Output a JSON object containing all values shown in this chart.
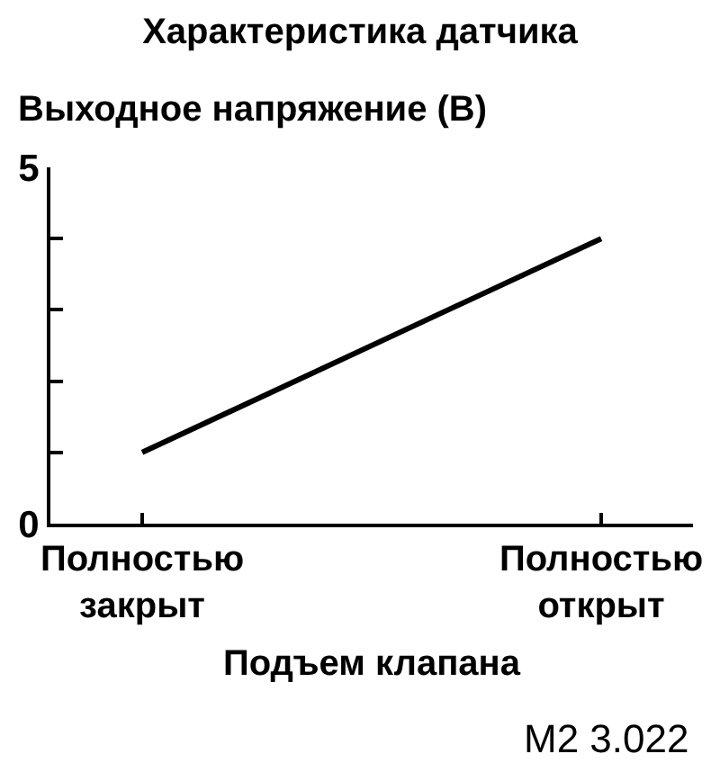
{
  "chart_data": {
    "type": "line",
    "title": "Характеристика датчика",
    "ylabel": "Выходное напряжение (В)",
    "xlabel": "Подъем клапана",
    "annotations": [
      "M2 3.022"
    ],
    "categories": [
      "Полностью закрыт",
      "Полностью открыт"
    ],
    "series": [
      {
        "color": "#000000",
        "values": [
          1,
          4
        ]
      }
    ],
    "ylim": [
      0,
      5
    ],
    "yticks": [
      0,
      {
        "value": 1,
        "label": null
      },
      {
        "value": 2,
        "label": null
      },
      {
        "value": 3,
        "label": null
      },
      {
        "value": 4,
        "label": null
      },
      5
    ],
    "grid": false
  }
}
